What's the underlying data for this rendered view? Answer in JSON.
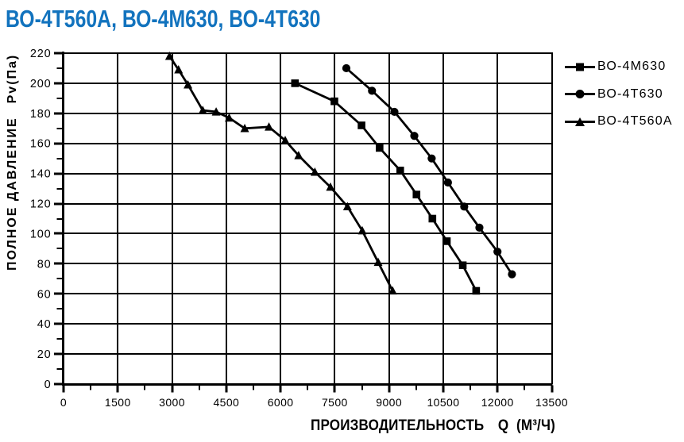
{
  "page_title": "ВО-4Т560А, ВО-4М630, ВО-4Т630",
  "title_color": "#1273BE",
  "chart_data": {
    "type": "line",
    "title": "ВО-4Т560А, ВО-4М630, ВО-4Т630",
    "xlabel": "ПРОИЗВОДИТЕЛЬНОСТЬ",
    "xlabel_symbol": "Q",
    "xlabel_unit": "(М³/Ч)",
    "ylabel": "ПОЛНОЕ ДАВЛЕНИЕ",
    "ylabel_unit": "Pv(Па)",
    "xlim": [
      0,
      13500
    ],
    "ylim": [
      0,
      220
    ],
    "x_ticks": [
      0,
      1500,
      3000,
      4500,
      6000,
      7500,
      9000,
      10500,
      12000,
      13500
    ],
    "y_ticks": [
      0,
      20,
      40,
      60,
      80,
      100,
      120,
      140,
      160,
      180,
      200,
      220
    ],
    "x_minor_step": 750,
    "y_minor_step": 10,
    "x_major_step": 1500,
    "y_major_step": 20,
    "grid": true,
    "grid_color": "#000000",
    "line_color": "#000000",
    "legend_position": "right-top",
    "series": [
      {
        "name": "ВО-4М630",
        "marker": "square",
        "points": [
          [
            6400,
            200
          ],
          [
            7490,
            188
          ],
          [
            8240,
            172
          ],
          [
            8740,
            157
          ],
          [
            9310,
            142
          ],
          [
            9760,
            126
          ],
          [
            10200,
            110
          ],
          [
            10600,
            95
          ],
          [
            11040,
            79
          ],
          [
            11410,
            62
          ]
        ]
      },
      {
        "name": "ВО-4Т630",
        "marker": "circle",
        "points": [
          [
            7820,
            210
          ],
          [
            8530,
            195
          ],
          [
            9150,
            181
          ],
          [
            9700,
            165
          ],
          [
            10180,
            150
          ],
          [
            10630,
            134
          ],
          [
            11080,
            118
          ],
          [
            11500,
            104
          ],
          [
            12000,
            88
          ],
          [
            12400,
            73
          ]
        ]
      },
      {
        "name": "ВО-4Т560А",
        "marker": "triangle",
        "points": [
          [
            2930,
            218
          ],
          [
            3180,
            209
          ],
          [
            3440,
            199
          ],
          [
            3850,
            182
          ],
          [
            4220,
            181
          ],
          [
            4580,
            177
          ],
          [
            5010,
            170
          ],
          [
            5680,
            171
          ],
          [
            6130,
            162
          ],
          [
            6500,
            152
          ],
          [
            6950,
            141
          ],
          [
            7380,
            131
          ],
          [
            7850,
            118
          ],
          [
            8260,
            102
          ],
          [
            8700,
            81
          ],
          [
            9100,
            62
          ]
        ]
      }
    ]
  }
}
